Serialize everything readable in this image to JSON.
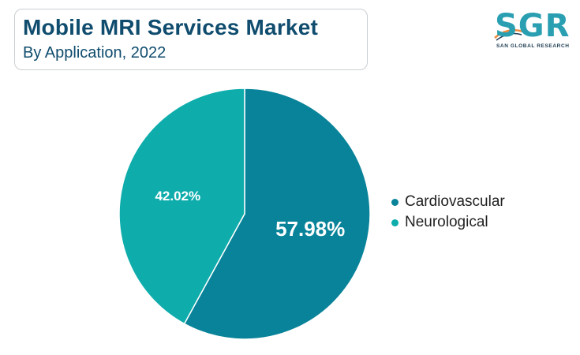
{
  "header": {
    "title": "Mobile MRI Services Market",
    "subtitle": "By Application, 2022"
  },
  "logo": {
    "letters": "SGR",
    "tagline": "SAN GLOBAL RESEARCH"
  },
  "chart_data": {
    "type": "pie",
    "title": "Mobile MRI Services Market",
    "subtitle": "By Application, 2022",
    "categories": [
      "Cardiovascular",
      "Neurological"
    ],
    "values": [
      57.98,
      42.02
    ],
    "labels": [
      "57.98%",
      "42.02%"
    ],
    "colors": [
      "#088399",
      "#0eadac"
    ],
    "start": "12 o'clock, clockwise",
    "legend_position": "right"
  },
  "legend": {
    "items": [
      {
        "label": "Cardiovascular",
        "color": "#088399"
      },
      {
        "label": "Neurological",
        "color": "#0eadac"
      }
    ]
  }
}
